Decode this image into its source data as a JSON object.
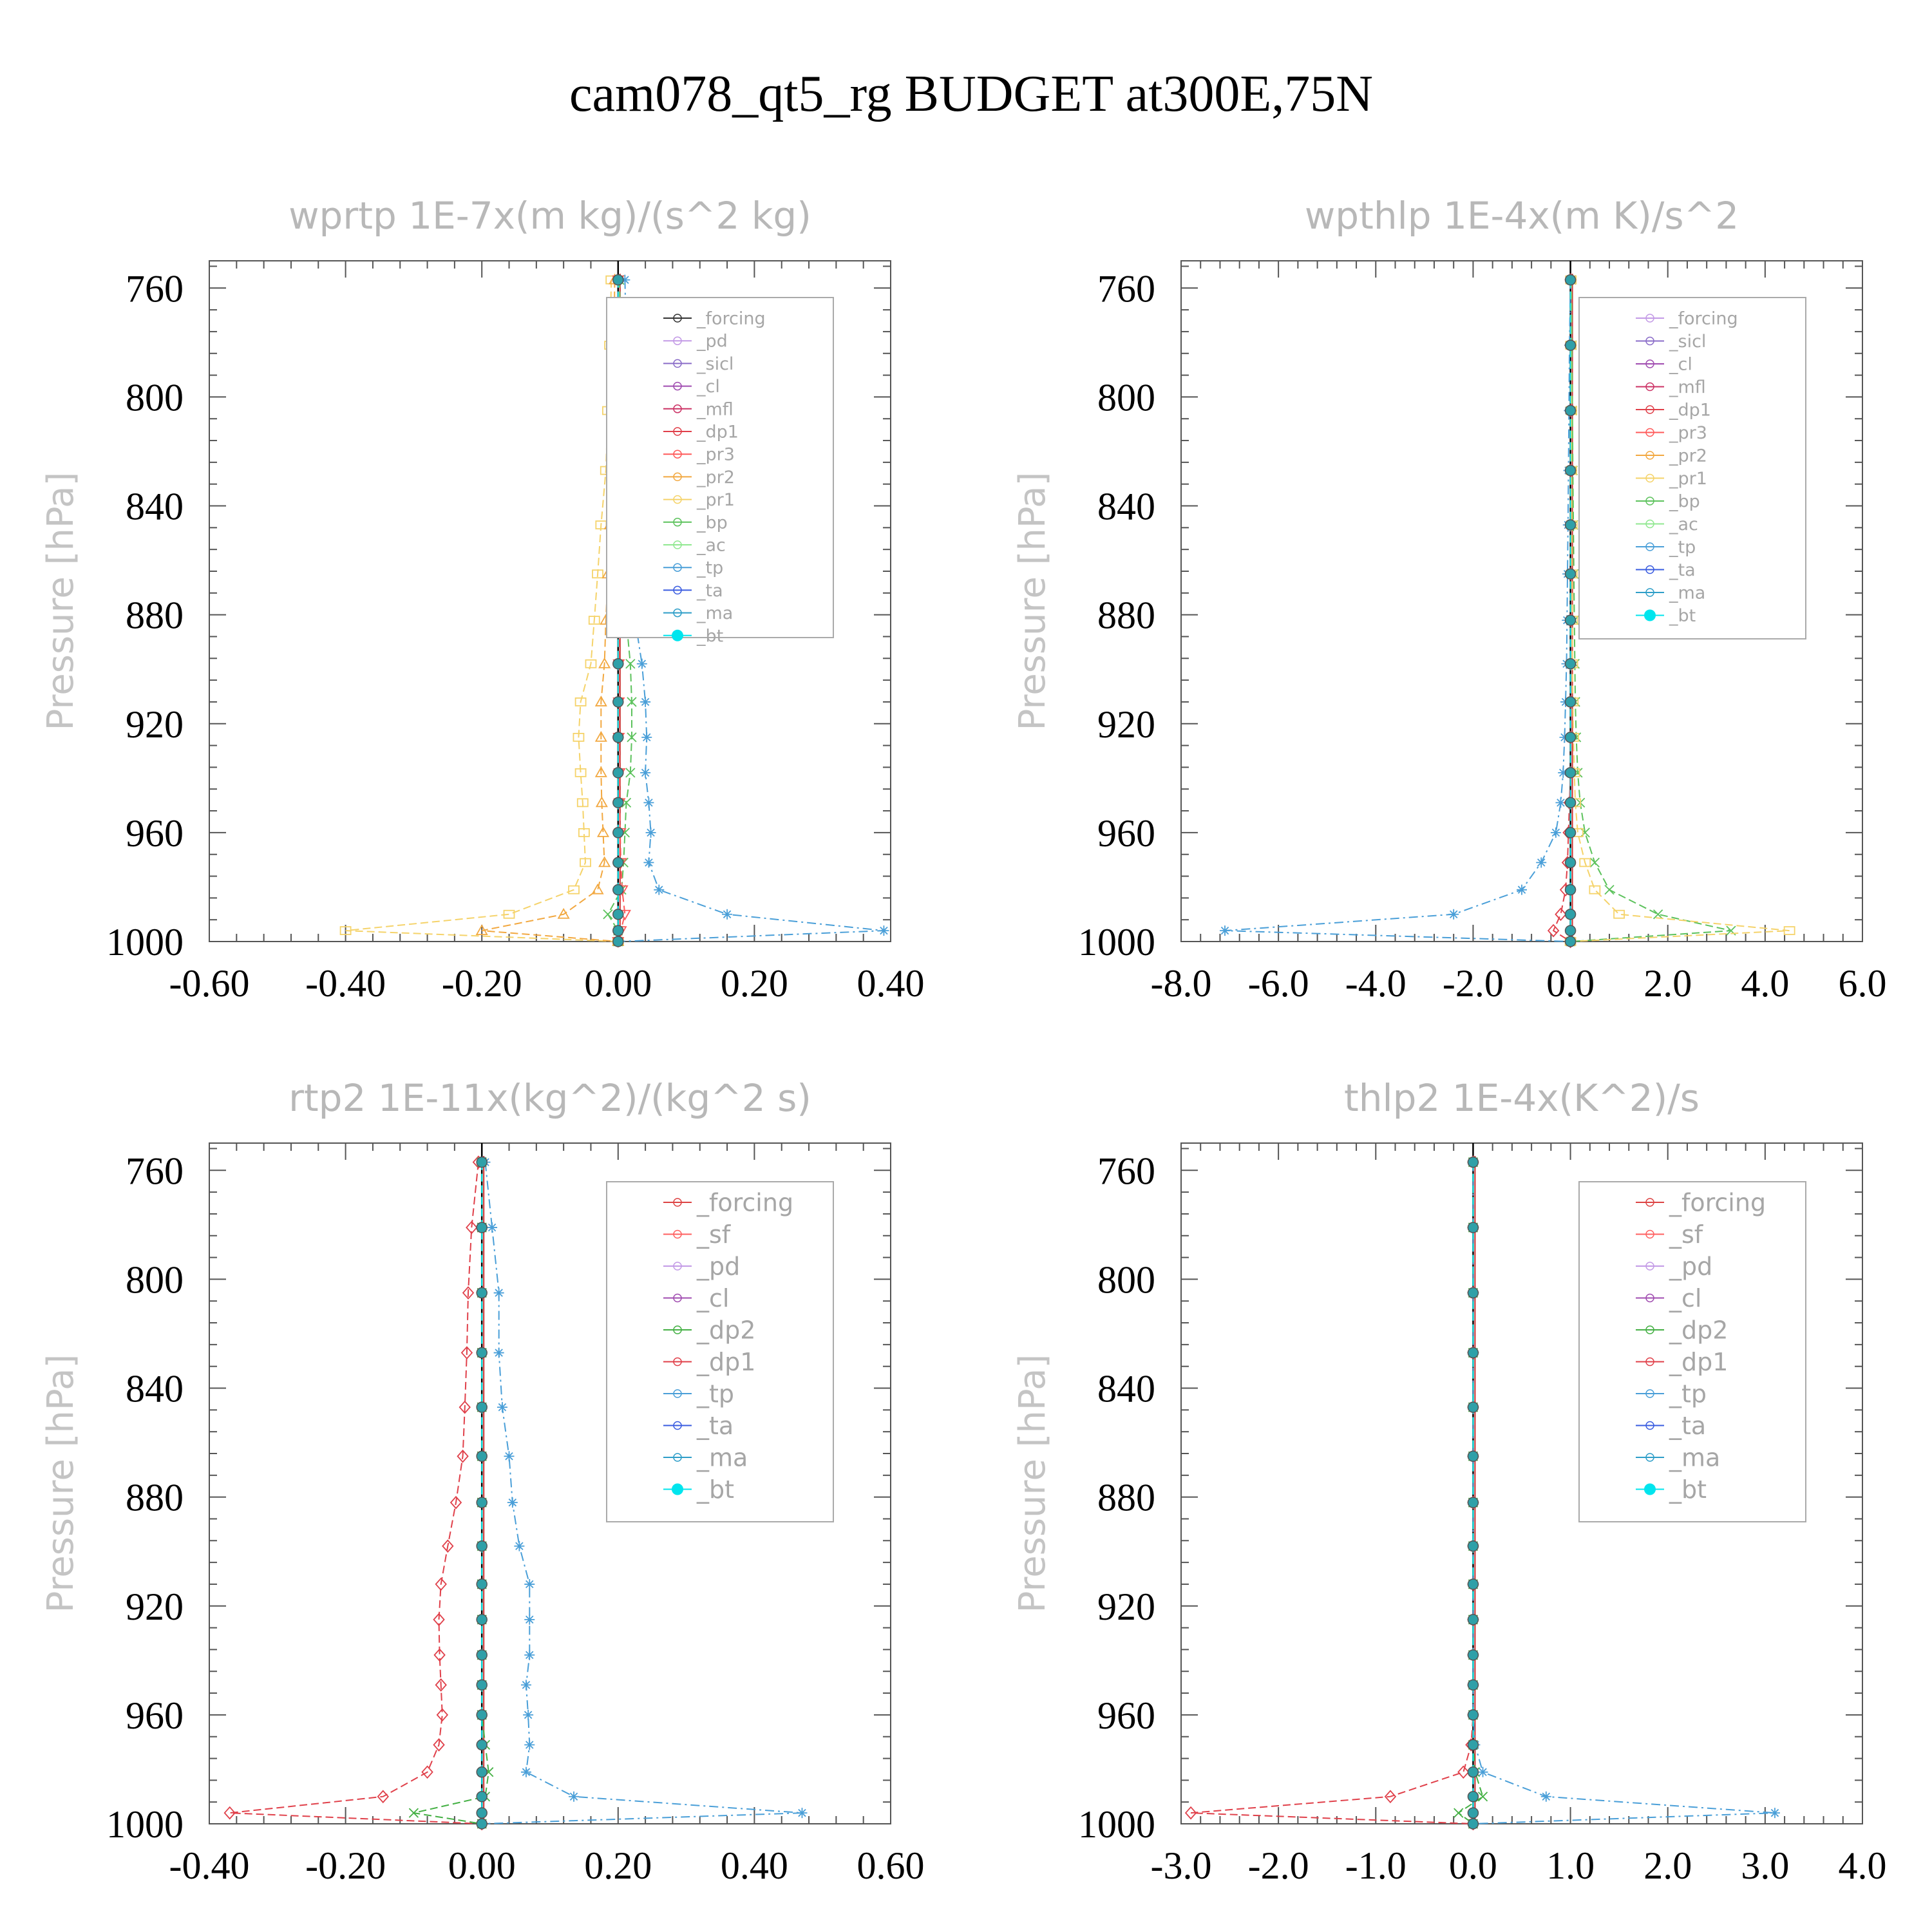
{
  "title": "cam078_qt5_rg  BUDGET at300E,75N",
  "colors": {
    "forcing": "#333333",
    "forcing_red": "#dd4444",
    "pd": "#c39ae6",
    "sicl": "#8a6cc8",
    "cl": "#a04cb0",
    "mfl": "#cc3366",
    "dp1": "#e0404a",
    "pr3": "#ff5a5a",
    "pr2": "#f2a840",
    "pr1": "#f5d36a",
    "bp": "#5cc25c",
    "ac": "#90e890",
    "tp": "#4a9fd8",
    "ta": "#3a5ce0",
    "ma": "#2e9ec8",
    "bt": "#00e5ee",
    "sf": "#ff6060",
    "dp2": "#44b044",
    "zero": "#000000"
  },
  "chart_data": [
    {
      "type": "line",
      "title": "wprtp  1E-7x(m kg)/(s^2 kg)",
      "ylabel": "Pressure [hPa]",
      "xlabel": "",
      "xlim": [
        -0.6,
        0.4
      ],
      "ylim": [
        1000,
        750
      ],
      "xticks": [
        "-0.60",
        "-0.40",
        "-0.20",
        "0.00",
        "0.20",
        "0.40"
      ],
      "yticks": [
        "760",
        "800",
        "840",
        "880",
        "920",
        "960",
        "1000"
      ],
      "legend": [
        "_forcing",
        "_pd",
        "_sicl",
        "_cl",
        "_mfl",
        "_dp1",
        "_pr3",
        "_pr2",
        "_pr1",
        "_bp",
        "_ac",
        "_tp",
        "_ta",
        "_ma",
        "_bt"
      ],
      "y": [
        757,
        781,
        805,
        827,
        847,
        865,
        882,
        898,
        912,
        925,
        938,
        949,
        960,
        971,
        981,
        990,
        996,
        1000
      ],
      "series": [
        {
          "name": "_pr1",
          "values": [
            -0.01,
            -0.012,
            -0.015,
            -0.018,
            -0.025,
            -0.03,
            -0.035,
            -0.04,
            -0.055,
            -0.058,
            -0.055,
            -0.052,
            -0.05,
            -0.048,
            -0.065,
            -0.16,
            -0.4,
            0.0
          ]
        },
        {
          "name": "_pr2",
          "values": [
            -0.005,
            -0.006,
            -0.008,
            -0.01,
            -0.012,
            -0.015,
            -0.018,
            -0.02,
            -0.025,
            -0.025,
            -0.025,
            -0.024,
            -0.022,
            -0.02,
            -0.03,
            -0.08,
            -0.2,
            0.0
          ]
        },
        {
          "name": "_tp",
          "values": [
            0.01,
            0.012,
            0.015,
            0.017,
            0.02,
            0.022,
            0.025,
            0.035,
            0.04,
            0.042,
            0.04,
            0.045,
            0.048,
            0.045,
            0.06,
            0.16,
            0.39,
            0.0
          ]
        },
        {
          "name": "_bp",
          "values": [
            0.002,
            0.004,
            0.005,
            0.006,
            0.008,
            0.01,
            0.012,
            0.018,
            0.02,
            0.02,
            0.018,
            0.012,
            0.01,
            0.008,
            0.005,
            -0.015,
            0.0,
            0.0
          ]
        },
        {
          "name": "_pr3",
          "values": [
            0.0,
            0.001,
            0.001,
            0.001,
            0.001,
            0.001,
            0.001,
            0.001,
            0.001,
            0.001,
            0.002,
            0.002,
            0.003,
            0.004,
            0.006,
            0.01,
            0.004,
            0.0
          ]
        },
        {
          "name": "_bt",
          "values": [
            0,
            0,
            0,
            0,
            0,
            0,
            0,
            0,
            0,
            0,
            0,
            0,
            0,
            0,
            0,
            0,
            0,
            0
          ]
        }
      ]
    },
    {
      "type": "line",
      "title": "wpthlp  1E-4x(m K)/s^2",
      "ylabel": "Pressure [hPa]",
      "xlabel": "",
      "xlim": [
        -8.0,
        6.0
      ],
      "ylim": [
        1000,
        750
      ],
      "xticks": [
        "-8.0",
        "-6.0",
        "-4.0",
        "-2.0",
        "0.0",
        "2.0",
        "4.0",
        "6.0"
      ],
      "yticks": [
        "760",
        "800",
        "840",
        "880",
        "920",
        "960",
        "1000"
      ],
      "legend": [
        "_forcing",
        "_sicl",
        "_cl",
        "_mfl",
        "_dp1",
        "_pr3",
        "_pr2",
        "_pr1",
        "_bp",
        "_ac",
        "_tp",
        "_ta",
        "_ma",
        "_bt"
      ],
      "y": [
        757,
        781,
        805,
        827,
        847,
        865,
        882,
        898,
        912,
        925,
        938,
        949,
        960,
        971,
        981,
        990,
        996,
        1000
      ],
      "series": [
        {
          "name": "_tp",
          "values": [
            0.0,
            -0.02,
            -0.03,
            -0.04,
            -0.05,
            -0.06,
            -0.07,
            -0.08,
            -0.1,
            -0.12,
            -0.15,
            -0.2,
            -0.3,
            -0.6,
            -1.0,
            -2.4,
            -7.1,
            0.0
          ]
        },
        {
          "name": "_bp",
          "values": [
            0.02,
            0.03,
            0.04,
            0.05,
            0.06,
            0.07,
            0.08,
            0.09,
            0.1,
            0.12,
            0.15,
            0.2,
            0.3,
            0.5,
            0.8,
            1.8,
            3.3,
            0.0
          ]
        },
        {
          "name": "_pr1",
          "values": [
            0.01,
            0.01,
            0.02,
            0.02,
            0.03,
            0.03,
            0.04,
            0.04,
            0.05,
            0.06,
            0.08,
            0.1,
            0.15,
            0.3,
            0.5,
            1.0,
            4.5,
            0.0
          ]
        },
        {
          "name": "_dp1",
          "values": [
            0.0,
            0.0,
            0.0,
            0.0,
            0.0,
            0.0,
            0.0,
            0.0,
            0.0,
            0.0,
            0.0,
            -0.02,
            -0.04,
            -0.06,
            -0.1,
            -0.2,
            -0.35,
            0.0
          ]
        },
        {
          "name": "_bt",
          "values": [
            0,
            0,
            0,
            0,
            0,
            0,
            0,
            0,
            0,
            0,
            0,
            0,
            0,
            0,
            0,
            0,
            0,
            0
          ]
        }
      ]
    },
    {
      "type": "line",
      "title": "rtp2  1E-11x(kg^2)/(kg^2 s)",
      "ylabel": "Pressure [hPa]",
      "xlabel": "",
      "xlim": [
        -0.4,
        0.6
      ],
      "ylim": [
        1000,
        750
      ],
      "xticks": [
        "-0.40",
        "-0.20",
        "0.00",
        "0.20",
        "0.40",
        "0.60"
      ],
      "yticks": [
        "760",
        "800",
        "840",
        "880",
        "920",
        "960",
        "1000"
      ],
      "legend": [
        "_forcing",
        "_sf",
        "_pd",
        "_cl",
        "_dp2",
        "_dp1",
        "_tp",
        "_ta",
        "_ma",
        "_bt"
      ],
      "y": [
        757,
        781,
        805,
        827,
        847,
        865,
        882,
        898,
        912,
        925,
        938,
        949,
        960,
        971,
        981,
        990,
        996,
        1000
      ],
      "series": [
        {
          "name": "_dp1",
          "values": [
            -0.005,
            -0.015,
            -0.02,
            -0.022,
            -0.025,
            -0.028,
            -0.038,
            -0.05,
            -0.06,
            -0.063,
            -0.062,
            -0.06,
            -0.058,
            -0.063,
            -0.08,
            -0.145,
            -0.37,
            0.0
          ]
        },
        {
          "name": "_tp",
          "values": [
            0.005,
            0.015,
            0.025,
            0.025,
            0.03,
            0.04,
            0.045,
            0.055,
            0.07,
            0.07,
            0.07,
            0.065,
            0.068,
            0.07,
            0.065,
            0.135,
            0.47,
            0.0
          ]
        },
        {
          "name": "_dp2",
          "values": [
            0.0,
            0.0,
            0.0,
            0.0,
            0.0,
            0.0,
            0.0,
            0.0,
            0.0,
            0.0,
            0.0,
            0.0,
            0.0,
            0.005,
            0.01,
            0.005,
            -0.1,
            0.0
          ]
        },
        {
          "name": "_bt",
          "values": [
            0,
            0,
            0,
            0,
            0,
            0,
            0,
            0,
            0,
            0,
            0,
            0,
            0,
            0,
            0,
            0,
            0,
            0
          ]
        }
      ]
    },
    {
      "type": "line",
      "title": "thlp2  1E-4x(K^2)/s",
      "ylabel": "Pressure [hPa]",
      "xlabel": "",
      "xlim": [
        -3.0,
        4.0
      ],
      "ylim": [
        1000,
        750
      ],
      "xticks": [
        "-3.0",
        "-2.0",
        "-1.0",
        "0.0",
        "1.0",
        "2.0",
        "3.0",
        "4.0"
      ],
      "yticks": [
        "760",
        "800",
        "840",
        "880",
        "920",
        "960",
        "1000"
      ],
      "legend": [
        "_forcing",
        "_sf",
        "_pd",
        "_cl",
        "_dp2",
        "_dp1",
        "_tp",
        "_ta",
        "_ma",
        "_bt"
      ],
      "y": [
        757,
        781,
        805,
        827,
        847,
        865,
        882,
        898,
        912,
        925,
        938,
        949,
        960,
        971,
        981,
        990,
        996,
        1000
      ],
      "series": [
        {
          "name": "_dp1",
          "values": [
            0.0,
            0.0,
            0.0,
            0.0,
            0.0,
            0.0,
            0.0,
            0.0,
            0.0,
            0.0,
            0.0,
            0.0,
            0.0,
            -0.02,
            -0.1,
            -0.85,
            -2.9,
            0.0
          ]
        },
        {
          "name": "_tp",
          "values": [
            0.0,
            0.0,
            0.0,
            0.0,
            0.0,
            0.0,
            0.0,
            0.0,
            0.0,
            0.0,
            0.0,
            0.0,
            0.0,
            0.02,
            0.1,
            0.75,
            3.1,
            0.0
          ]
        },
        {
          "name": "_dp2",
          "values": [
            0.0,
            0.0,
            0.0,
            0.0,
            0.0,
            0.0,
            0.0,
            0.0,
            0.0,
            0.0,
            0.0,
            0.0,
            0.0,
            0.0,
            0.02,
            0.1,
            -0.15,
            0.0
          ]
        },
        {
          "name": "_bt",
          "values": [
            0,
            0,
            0,
            0,
            0,
            0,
            0,
            0,
            0,
            0,
            0,
            0,
            0,
            0,
            0,
            0,
            0,
            0
          ]
        }
      ]
    }
  ]
}
